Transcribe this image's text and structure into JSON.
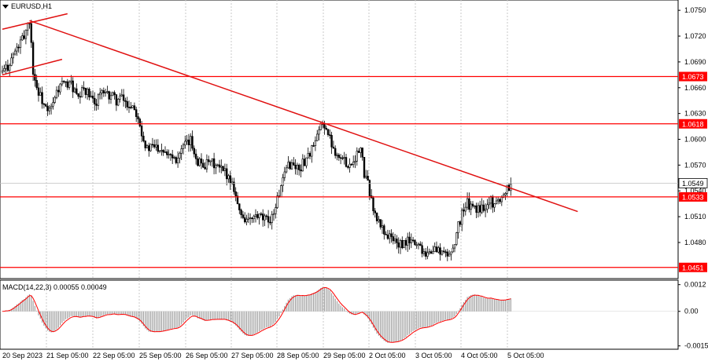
{
  "chart_title": "EURUSD,H1",
  "macd_label": "MACD(14,22,3) 0.00055 0.00049",
  "colors": {
    "level_line": "#ff0000",
    "trend_line": "#e01010",
    "candle": "#000000",
    "grid": "#c8c8c8",
    "price_tag_bg": "#ff0000",
    "current_price_tag_bg": "#ffffff",
    "macd_hist": "#a0a0a0",
    "signal_line": "#ff0000"
  },
  "chart_data": {
    "type": "candlestick",
    "symbol": "EURUSD",
    "timeframe": "H1",
    "ylim": [
      1.0438,
      1.0762
    ],
    "y_ticks": [
      "1.0750",
      "1.0720",
      "1.0690",
      "1.0660",
      "1.0630",
      "1.0600",
      "1.0570",
      "1.0540",
      "1.0510",
      "1.0480"
    ],
    "x_tick_labels": [
      "20 Sep 2023",
      "21 Sep 05:00",
      "22 Sep 05:00",
      "25 Sep 05:00",
      "26 Sep 05:00",
      "27 Sep 05:00",
      "28 Sep 05:00",
      "29 Sep 05:00",
      "2 Oct 05:00",
      "3 Oct 05:00",
      "4 Oct 05:00",
      "5 Oct 05:00"
    ],
    "horizontal_levels": [
      {
        "value": 1.0673,
        "label": "1.0673"
      },
      {
        "value": 1.0618,
        "label": "1.0618"
      },
      {
        "value": 1.0533,
        "label": "1.0533"
      },
      {
        "value": 1.0451,
        "label": "1.0451"
      }
    ],
    "current_price": {
      "value": 1.0549,
      "label": "1.0549"
    },
    "price_path": [
      [
        0,
        1.0678
      ],
      [
        3,
        1.0685
      ],
      [
        6,
        1.0698
      ],
      [
        8,
        1.0705
      ],
      [
        10,
        1.0712
      ],
      [
        12,
        1.072
      ],
      [
        14,
        1.0735
      ],
      [
        15,
        1.0738
      ],
      [
        16,
        1.071
      ],
      [
        17,
        1.068
      ],
      [
        19,
        1.066
      ],
      [
        22,
        1.0645
      ],
      [
        25,
        1.063
      ],
      [
        28,
        1.064
      ],
      [
        30,
        1.0655
      ],
      [
        33,
        1.0665
      ],
      [
        35,
        1.0662
      ],
      [
        37,
        1.0668
      ],
      [
        40,
        1.0655
      ],
      [
        42,
        1.0645
      ],
      [
        45,
        1.066
      ],
      [
        48,
        1.065
      ],
      [
        51,
        1.064
      ],
      [
        54,
        1.0655
      ],
      [
        57,
        1.065
      ],
      [
        60,
        1.0652
      ],
      [
        63,
        1.0645
      ],
      [
        66,
        1.0648
      ],
      [
        69,
        1.064
      ],
      [
        72,
        1.064
      ],
      [
        75,
        1.0628
      ],
      [
        78,
        1.06
      ],
      [
        80,
        1.0588
      ],
      [
        84,
        1.0592
      ],
      [
        88,
        1.059
      ],
      [
        92,
        1.0585
      ],
      [
        96,
        1.0578
      ],
      [
        100,
        1.059
      ],
      [
        104,
        1.0598
      ],
      [
        108,
        1.0575
      ],
      [
        112,
        1.057
      ],
      [
        116,
        1.0572
      ],
      [
        120,
        1.0565
      ],
      [
        124,
        1.056
      ],
      [
        128,
        1.0545
      ],
      [
        131,
        1.0515
      ],
      [
        134,
        1.0508
      ],
      [
        137,
        1.0505
      ],
      [
        140,
        1.051
      ],
      [
        143,
        1.0508
      ],
      [
        146,
        1.0505
      ],
      [
        149,
        1.051
      ],
      [
        152,
        1.053
      ],
      [
        155,
        1.055
      ],
      [
        158,
        1.0572
      ],
      [
        161,
        1.057
      ],
      [
        164,
        1.0565
      ],
      [
        167,
        1.0575
      ],
      [
        170,
        1.0585
      ],
      [
        173,
        1.0595
      ],
      [
        176,
        1.0615
      ],
      [
        178,
        1.0618
      ],
      [
        180,
        1.0605
      ],
      [
        183,
        1.059
      ],
      [
        186,
        1.058
      ],
      [
        189,
        1.0575
      ],
      [
        192,
        1.057
      ],
      [
        195,
        1.058
      ],
      [
        198,
        1.0588
      ],
      [
        200,
        1.056
      ],
      [
        203,
        1.054
      ],
      [
        206,
        1.051
      ],
      [
        209,
        1.05
      ],
      [
        212,
        1.049
      ],
      [
        215,
        1.0485
      ],
      [
        218,
        1.048
      ],
      [
        221,
        1.0475
      ],
      [
        224,
        1.0482
      ],
      [
        227,
        1.048
      ],
      [
        230,
        1.0478
      ],
      [
        233,
        1.047
      ],
      [
        236,
        1.0468
      ],
      [
        239,
        1.0472
      ],
      [
        242,
        1.047
      ],
      [
        245,
        1.0465
      ],
      [
        248,
        1.0468
      ],
      [
        251,
        1.049
      ],
      [
        254,
        1.0515
      ],
      [
        257,
        1.0525
      ],
      [
        260,
        1.052
      ],
      [
        263,
        1.0518
      ],
      [
        266,
        1.0522
      ],
      [
        269,
        1.053
      ],
      [
        272,
        1.0525
      ],
      [
        275,
        1.053
      ],
      [
        278,
        1.054
      ],
      [
        281,
        1.0549
      ]
    ],
    "trend_lines": [
      {
        "points": [
          [
            15,
            1.0738
          ],
          [
            318,
            1.0516
          ]
        ]
      },
      {
        "points": [
          [
            0,
            1.0728
          ],
          [
            36,
            1.0746
          ]
        ]
      },
      {
        "points": [
          [
            0,
            1.0675
          ],
          [
            33,
            1.0693
          ]
        ]
      }
    ],
    "macd": {
      "label": "MACD(14,22,3)",
      "main": 0.00055,
      "signal": 0.00049,
      "ylim": [
        -0.0017,
        0.0014
      ],
      "y_ticks": [
        "0.0012",
        "0.00",
        "-0.00155"
      ]
    }
  }
}
